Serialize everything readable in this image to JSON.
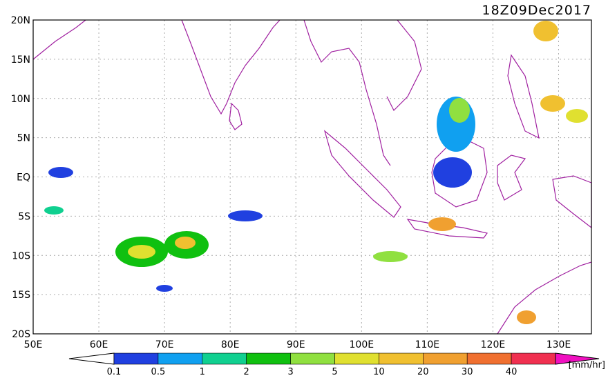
{
  "map": {
    "title": "18Z09Dec2017",
    "lat_labels": [
      "20N",
      "15N",
      "10N",
      "5N",
      "EQ",
      "5S",
      "10S",
      "15S",
      "20S"
    ],
    "lon_labels": [
      "50E",
      "60E",
      "70E",
      "80E",
      "90E",
      "100E",
      "110E",
      "120E",
      "130E"
    ],
    "colorbar": {
      "labels": [
        "0.1",
        "0.5",
        "1",
        "2",
        "3",
        "5",
        "10",
        "20",
        "30",
        "40"
      ],
      "unit": "[mm/hr]"
    }
  }
}
